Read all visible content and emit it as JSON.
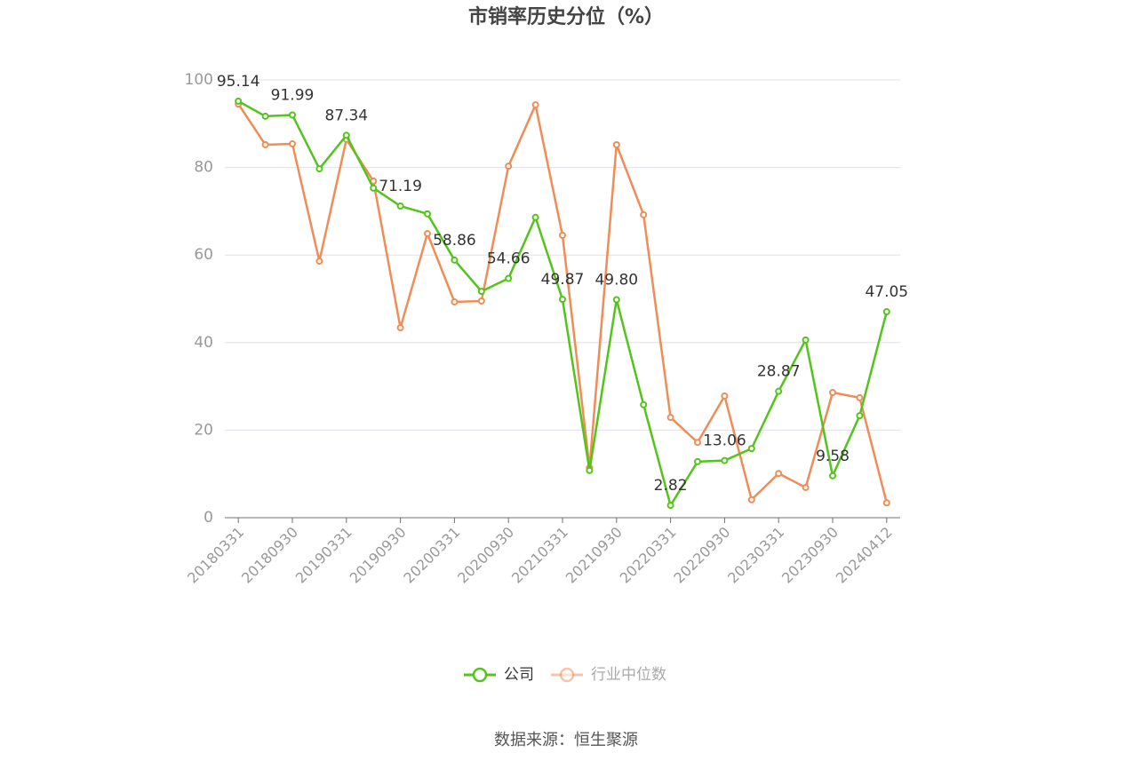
{
  "chart_data": {
    "type": "line",
    "title": "市销率历史分位（%）",
    "categories": [
      "20180331",
      null,
      "20180930",
      null,
      "20190331",
      null,
      "20190930",
      null,
      "20200331",
      null,
      "20200930",
      null,
      "20210331",
      null,
      "20210930",
      null,
      "20220331",
      null,
      "20220930",
      null,
      "20230331",
      null,
      "20230930",
      null,
      "20240412"
    ],
    "series": [
      {
        "name": "公司",
        "color": "#52c41a",
        "values": [
          95.14,
          91.7,
          91.99,
          79.7,
          87.34,
          75.3,
          71.19,
          69.4,
          58.86,
          51.7,
          54.66,
          68.6,
          49.87,
          10.8,
          49.8,
          25.8,
          2.82,
          12.8,
          13.06,
          15.8,
          28.87,
          40.6,
          9.58,
          23.3,
          47.05
        ],
        "value_labels": [
          "95.14",
          null,
          "91.99",
          null,
          "87.34",
          null,
          "71.19",
          null,
          "58.86",
          null,
          "54.66",
          null,
          "49.87",
          null,
          "49.80",
          null,
          "2.82",
          null,
          "13.06",
          null,
          "28.87",
          null,
          "9.58",
          null,
          "47.05"
        ]
      },
      {
        "name": "行业中位数",
        "color": "#f08c56",
        "values": [
          94.5,
          85.2,
          85.4,
          58.6,
          86.4,
          76.9,
          43.4,
          64.9,
          49.3,
          49.5,
          80.3,
          94.3,
          64.5,
          11.4,
          85.2,
          69.2,
          22.9,
          17.2,
          27.8,
          4.1,
          10.1,
          6.9,
          28.6,
          27.4,
          3.4
        ]
      }
    ],
    "ylim": [
      0,
      100
    ],
    "yticks": [
      0,
      20,
      40,
      60,
      80,
      100
    ],
    "grid": true,
    "source": "数据来源：恒生聚源"
  }
}
